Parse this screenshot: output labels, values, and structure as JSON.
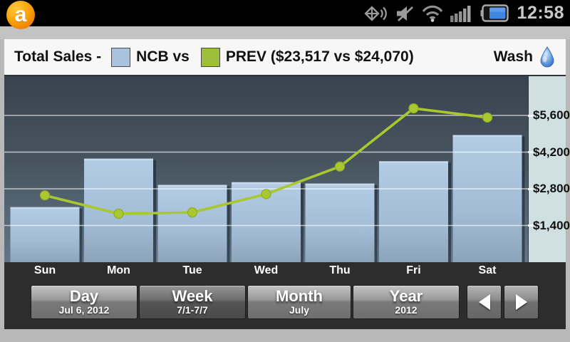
{
  "status_bar": {
    "time": "12:58",
    "icons": [
      "app-logo",
      "speakerphone-icon",
      "mute-icon",
      "wifi-icon",
      "signal-icon",
      "battery-icon"
    ],
    "battery_color": "#3f87e0"
  },
  "header": {
    "title": "Total Sales -",
    "legend": [
      {
        "label": "NCB vs",
        "color": "#a9c2dd"
      },
      {
        "label": "PREV ($23,517 vs $24,070)",
        "color": "#9cbe3a"
      }
    ],
    "mode_label": "Wash",
    "mode_icon": "water-drop-icon"
  },
  "chart_data": {
    "type": "bar",
    "title": "Total Sales - NCB vs PREV ($23,517 vs $24,070)",
    "categories": [
      "Sun",
      "Mon",
      "Tue",
      "Wed",
      "Thu",
      "Fri",
      "Sat"
    ],
    "series": [
      {
        "name": "NCB",
        "type": "bar",
        "color": "#a9c2dd",
        "total": "$23,517",
        "values": [
          2100,
          3950,
          2950,
          3050,
          3000,
          3850,
          4850
        ]
      },
      {
        "name": "PREV",
        "type": "line",
        "color": "#a9c72f",
        "total": "$24,070",
        "values": [
          2550,
          1850,
          1900,
          2600,
          3650,
          5870,
          5520
        ]
      }
    ],
    "xlabel": "",
    "ylabel": "",
    "ylim": [
      0,
      7100
    ],
    "yticks": [
      1400,
      2800,
      4200,
      5600
    ],
    "ytick_labels": [
      "$1,400",
      "$2,800",
      "$4,200",
      "$5,600"
    ],
    "grid": true,
    "legend_position": "top"
  },
  "footer": {
    "buttons": [
      {
        "label": "Day",
        "sublabel": "Jul 6, 2012",
        "selected": false
      },
      {
        "label": "Week",
        "sublabel": "7/1-7/7",
        "selected": true
      },
      {
        "label": "Month",
        "sublabel": "July",
        "selected": false
      },
      {
        "label": "Year",
        "sublabel": "2012",
        "selected": false
      }
    ],
    "nav": {
      "prev": "left-arrow",
      "next": "right-arrow"
    }
  }
}
